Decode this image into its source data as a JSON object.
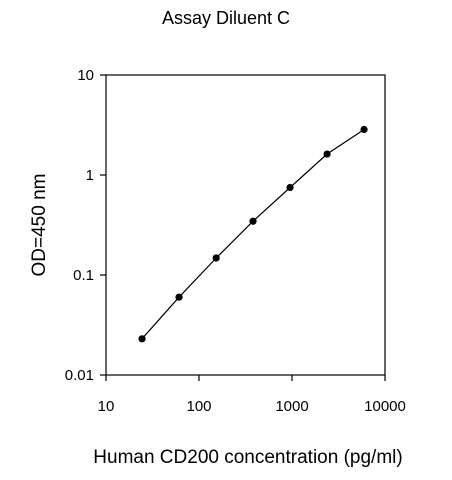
{
  "chart_data": {
    "type": "line",
    "title": "Assay Diluent C",
    "xlabel": "Human CD200 concentration (pg/ml)",
    "ylabel": "OD=450 nm",
    "x_scale": "log",
    "y_scale": "log",
    "xlim": [
      10,
      10000
    ],
    "ylim": [
      0.01,
      10
    ],
    "x_ticks": [
      "10",
      "100",
      "1000",
      "10000"
    ],
    "y_ticks": [
      "10",
      "1",
      "0.1",
      "0.01"
    ],
    "grid": false,
    "legend": "none",
    "marker": "filled-circle",
    "line_color": "#000000",
    "series": [
      {
        "x": [
          24.4,
          61,
          153,
          381,
          953,
          2383,
          5957
        ],
        "y": [
          0.023,
          0.06,
          0.148,
          0.345,
          0.75,
          1.62,
          2.85
        ]
      }
    ]
  }
}
